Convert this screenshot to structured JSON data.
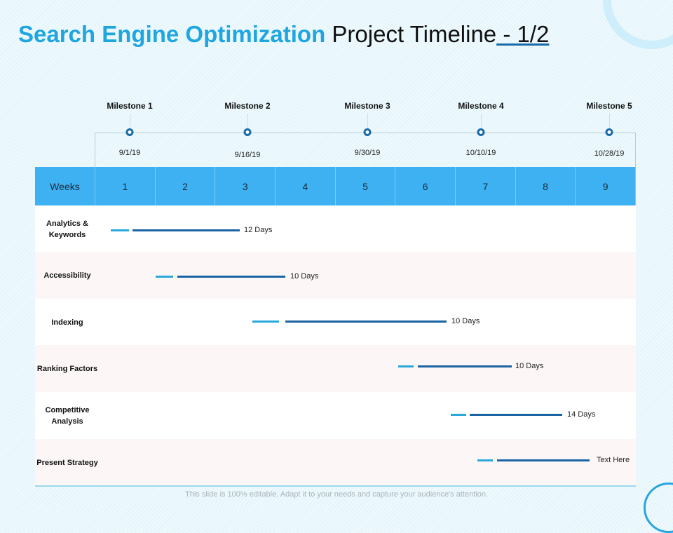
{
  "title": {
    "part1": "Search Engine Optimization",
    "part2": "Project Timeline",
    "part3": " - 1/2"
  },
  "milestones": [
    {
      "label": "Milestone 1",
      "date": "9/1/19"
    },
    {
      "label": "Milestone 2",
      "date": "9/16/19"
    },
    {
      "label": "Milestone 3",
      "date": "9/30/19"
    },
    {
      "label": "Milestone 4",
      "date": "10/10/19"
    },
    {
      "label": "Milestone 5",
      "date": "10/28/19"
    }
  ],
  "header": {
    "weeks_label": "Weeks",
    "weeks": [
      "1",
      "2",
      "3",
      "4",
      "5",
      "6",
      "7",
      "8",
      "9"
    ]
  },
  "tasks": [
    {
      "name": "Analytics & Keywords",
      "duration": "12 Days"
    },
    {
      "name": "Accessibility",
      "duration": "10 Days"
    },
    {
      "name": "Indexing",
      "duration": "10 Days"
    },
    {
      "name": "Ranking Factors",
      "duration": "10 Days"
    },
    {
      "name": "Competitive Analysis",
      "duration": "14 Days"
    },
    {
      "name": "Present Strategy",
      "duration": "Text Here"
    }
  ],
  "colors": {
    "accent": "#1fa6e0",
    "header": "#3eb1f3",
    "bar_dark": "#1a64a3",
    "bar_light": "#29a8dc"
  },
  "footer": "This slide is 100% editable. Adapt it to your needs and capture your audience's attention."
}
